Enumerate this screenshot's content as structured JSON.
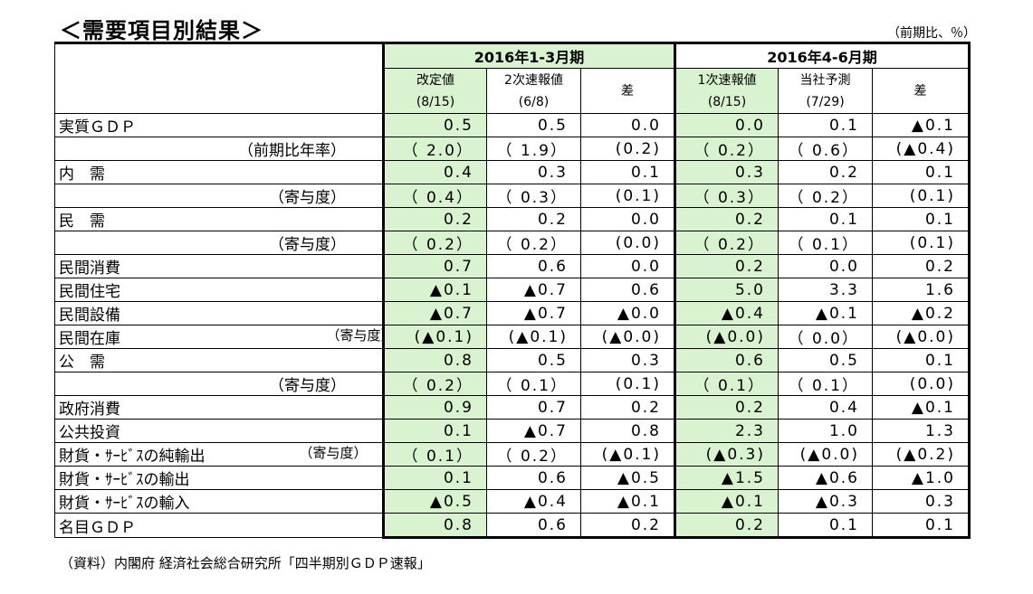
{
  "title": "＜需要項目別結果＞",
  "unit": "（前期比、％）",
  "source": "（資料）内閣府 経済社会総合研究所「四半期別ＧＤＰ速報」",
  "periods": [
    "2016年1-3月期",
    "2016年4-6月期"
  ],
  "columns": [
    {
      "label": "改定値",
      "date": "(8/15)"
    },
    {
      "label": "2次速報値",
      "date": "(6/8)"
    },
    {
      "label": "差",
      "date": ""
    },
    {
      "label": "1次速報値",
      "date": "(8/15)"
    },
    {
      "label": "当社予測",
      "date": "(7/29)"
    },
    {
      "label": "差",
      "date": ""
    }
  ],
  "rows": [
    {
      "label": "実質ＧＤＰ",
      "values": [
        "0.5",
        "0.5",
        "0.0",
        "0.0",
        "0.1",
        "▲0.1"
      ]
    },
    {
      "label": "（前期比年率）",
      "values": [
        "（ 2.0）",
        "（ 1.9）",
        "(0.2)",
        "（ 0.2）",
        "（ 0.6）",
        "(▲0.4)"
      ]
    },
    {
      "label": "内　需",
      "values": [
        "0.4",
        "0.3",
        "0.1",
        "0.3",
        "0.2",
        "0.1"
      ]
    },
    {
      "label": "（寄与度）",
      "values": [
        "（ 0.4）",
        "（ 0.3）",
        "(0.1)",
        "（ 0.3）",
        "（ 0.2）",
        "(0.1)"
      ]
    },
    {
      "label": "民　需",
      "values": [
        "0.2",
        "0.2",
        "0.0",
        "0.2",
        "0.1",
        "0.1"
      ]
    },
    {
      "label": "（寄与度）",
      "values": [
        "（ 0.2）",
        "（ 0.2）",
        "(0.0)",
        "（ 0.2）",
        "（ 0.1）",
        "(0.1)"
      ]
    },
    {
      "label": "民間消費",
      "values": [
        "0.7",
        "0.6",
        "0.0",
        "0.2",
        "0.0",
        "0.2"
      ]
    },
    {
      "label": "民間住宅",
      "values": [
        "▲0.1",
        "▲0.7",
        "0.6",
        "5.0",
        "3.3",
        "1.6"
      ]
    },
    {
      "label": "民間設備",
      "values": [
        "▲0.7",
        "▲0.7",
        "▲0.0",
        "▲0.4",
        "▲0.1",
        "▲0.2"
      ]
    },
    {
      "label": "民間在庫",
      "note": "（寄与度）",
      "values": [
        "(▲0.1)",
        "(▲0.1)",
        "(▲0.0)",
        "(▲0.0)",
        "（ 0.0）",
        "(▲0.0)"
      ]
    },
    {
      "label": "公　需",
      "values": [
        "0.8",
        "0.5",
        "0.3",
        "0.6",
        "0.5",
        "0.1"
      ]
    },
    {
      "label": "（寄与度）",
      "values": [
        "（ 0.2）",
        "（ 0.1）",
        "(0.1)",
        "（ 0.1）",
        "（ 0.1）",
        "(0.0)"
      ]
    },
    {
      "label": "政府消費",
      "values": [
        "0.9",
        "0.7",
        "0.2",
        "0.2",
        "0.4",
        "▲0.1"
      ]
    },
    {
      "label": "公共投資",
      "values": [
        "0.1",
        "▲0.7",
        "0.8",
        "2.3",
        "1.0",
        "1.3"
      ]
    },
    {
      "label": "財貨・ｻｰﾋﾞｽの純輸出",
      "note": "（寄与度）",
      "values": [
        "（ 0.1）",
        "（ 0.2）",
        "(▲0.1)",
        "(▲0.3)",
        "(▲0.0)",
        "(▲0.2)"
      ]
    },
    {
      "label": "財貨・ｻｰﾋﾞｽの輸出",
      "values": [
        "0.1",
        "0.6",
        "▲0.5",
        "▲1.5",
        "▲0.6",
        "▲1.0"
      ]
    },
    {
      "label": "財貨・ｻｰﾋﾞｽの輸入",
      "values": [
        "▲0.5",
        "▲0.4",
        "▲0.1",
        "▲0.1",
        "▲0.3",
        "0.3"
      ]
    },
    {
      "label": "名目ＧＤＰ",
      "values": [
        "0.8",
        "0.6",
        "0.2",
        "0.2",
        "0.1",
        "0.1"
      ]
    }
  ]
}
